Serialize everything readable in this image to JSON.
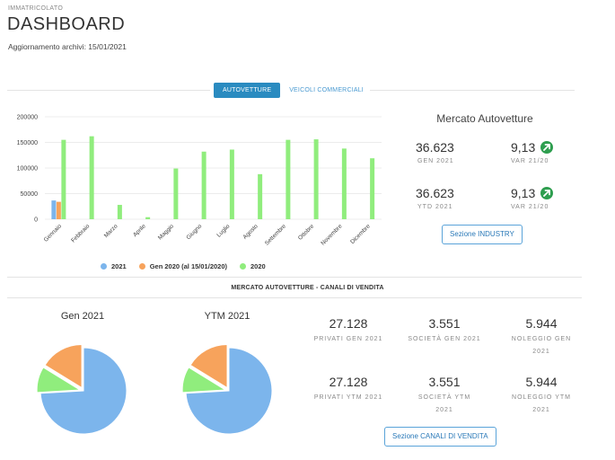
{
  "header": {
    "eyebrow": "IMMATRICOLATO",
    "title": "DASHBOARD",
    "updated_label": "Aggiornamento archivi: 15/01/2021"
  },
  "tabs": [
    {
      "label": "AUTOVETTURE",
      "active": true
    },
    {
      "label": "VEICOLI COMMERCIALI",
      "active": false
    }
  ],
  "chart_data": {
    "type": "bar",
    "categories": [
      "Gennaio",
      "Febbraio",
      "Marzo",
      "Aprile",
      "Maggio",
      "Giugno",
      "Luglio",
      "Agosto",
      "Settembre",
      "Ottobre",
      "Novembre",
      "Dicembre"
    ],
    "series": [
      {
        "name": "2021",
        "color": "#7cb5ec",
        "values": [
          36623,
          0,
          0,
          0,
          0,
          0,
          0,
          0,
          0,
          0,
          0,
          0
        ]
      },
      {
        "name": "Gen 2020 (al 15/01/2020)",
        "color": "#f7a35c",
        "values": [
          34000,
          0,
          0,
          0,
          0,
          0,
          0,
          0,
          0,
          0,
          0,
          0
        ]
      },
      {
        "name": "2020",
        "color": "#90ed7d",
        "values": [
          155000,
          162000,
          28000,
          4000,
          99000,
          132000,
          136000,
          88000,
          155000,
          156000,
          138000,
          119000
        ]
      }
    ],
    "ylim": [
      0,
      200000
    ],
    "yticks": [
      "0",
      "50000",
      "100000",
      "150000",
      "200000"
    ],
    "legend": "bottom",
    "grid": true
  },
  "industry": {
    "title": "Mercato Autovetture",
    "rows": [
      {
        "value": "36.623",
        "label": "GEN 2021",
        "var_value": "9,13",
        "var_label": "VAR 21/20"
      },
      {
        "value": "36.623",
        "label": "YTD 2021",
        "var_value": "9,13",
        "var_label": "VAR 21/20"
      }
    ],
    "button_label": "Sezione INDUSTRY"
  },
  "channels": {
    "section_title": "MERCATO AUTOVETTURE - CANALI DI VENDITA",
    "pies": [
      {
        "title": "Gen 2021",
        "slices": [
          {
            "value": 27128,
            "color": "#7cb5ec"
          },
          {
            "value": 3551,
            "color": "#90ed7d"
          },
          {
            "value": 5944,
            "color": "#f7a35c"
          }
        ]
      },
      {
        "title": "YTM 2021",
        "slices": [
          {
            "value": 27128,
            "color": "#7cb5ec"
          },
          {
            "value": 3551,
            "color": "#90ed7d"
          },
          {
            "value": 5944,
            "color": "#f7a35c"
          }
        ]
      }
    ],
    "stats": [
      {
        "value": "27.128",
        "label": "PRIVATI GEN 2021"
      },
      {
        "value": "3.551",
        "label": "SOCIETÀ GEN 2021"
      },
      {
        "value": "5.944",
        "label": "NOLEGGIO GEN 2021"
      },
      {
        "value": "27.128",
        "label": "PRIVATI YTM 2021"
      },
      {
        "value": "3.551",
        "label": "SOCIETÀ YTM 2021"
      },
      {
        "value": "5.944",
        "label": "NOLEGGIO YTM 2021"
      }
    ],
    "button_label": "Sezione CANALI DI VENDITA"
  }
}
